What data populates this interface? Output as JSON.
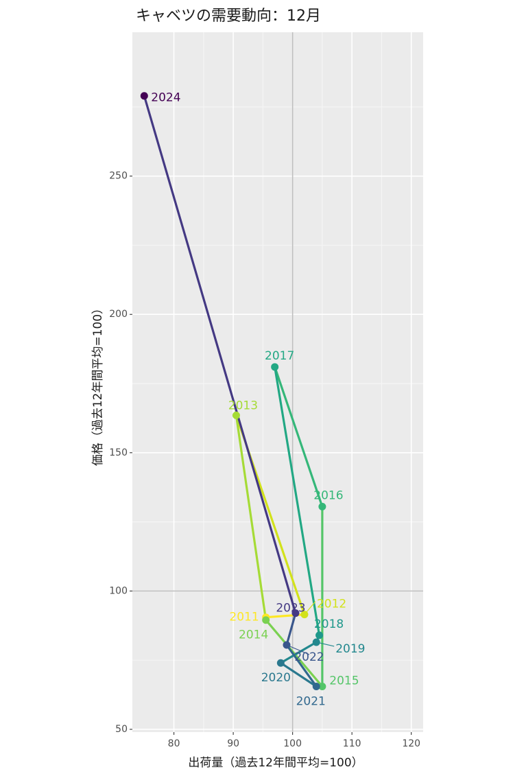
{
  "chart_data": {
    "type": "scatter",
    "title": "キャベツの需要動向：12月",
    "xlabel": "出荷量（過去12年間平均=100）",
    "ylabel": "価格（過去12年間平均=100）",
    "xlim": [
      73,
      122
    ],
    "ylim": [
      49,
      302
    ],
    "x_ticks": [
      80,
      90,
      100,
      110,
      120
    ],
    "y_ticks": [
      50,
      100,
      150,
      200,
      250
    ],
    "reference_lines": {
      "x": 100,
      "y": 100
    },
    "grid": true,
    "legend": "none",
    "points": [
      {
        "label": "2011",
        "x": 95.5,
        "y": 90.5,
        "color": "#FDE725"
      },
      {
        "label": "2012",
        "x": 102.0,
        "y": 91.5,
        "color": "#D2E21B"
      },
      {
        "label": "2013",
        "x": 90.5,
        "y": 163.5,
        "color": "#A5DB36"
      },
      {
        "label": "2014",
        "x": 95.5,
        "y": 89.5,
        "color": "#7AD151"
      },
      {
        "label": "2015",
        "x": 105.0,
        "y": 65.5,
        "color": "#54C568"
      },
      {
        "label": "2016",
        "x": 105.0,
        "y": 130.5,
        "color": "#35B779"
      },
      {
        "label": "2017",
        "x": 97.0,
        "y": 181.0,
        "color": "#22A884"
      },
      {
        "label": "2018",
        "x": 104.5,
        "y": 84.0,
        "color": "#1F988B"
      },
      {
        "label": "2019",
        "x": 104.0,
        "y": 81.5,
        "color": "#23888E"
      },
      {
        "label": "2020",
        "x": 98.0,
        "y": 74.0,
        "color": "#2A788E"
      },
      {
        "label": "2021",
        "x": 104.0,
        "y": 65.5,
        "color": "#31688E"
      },
      {
        "label": "2022",
        "x": 99.0,
        "y": 80.5,
        "color": "#39568C"
      },
      {
        "label": "2023",
        "x": 100.5,
        "y": 92.0,
        "color": "#443983"
      },
      {
        "label": "2024",
        "x": 75.0,
        "y": 279.0,
        "color": "#440154"
      }
    ]
  }
}
